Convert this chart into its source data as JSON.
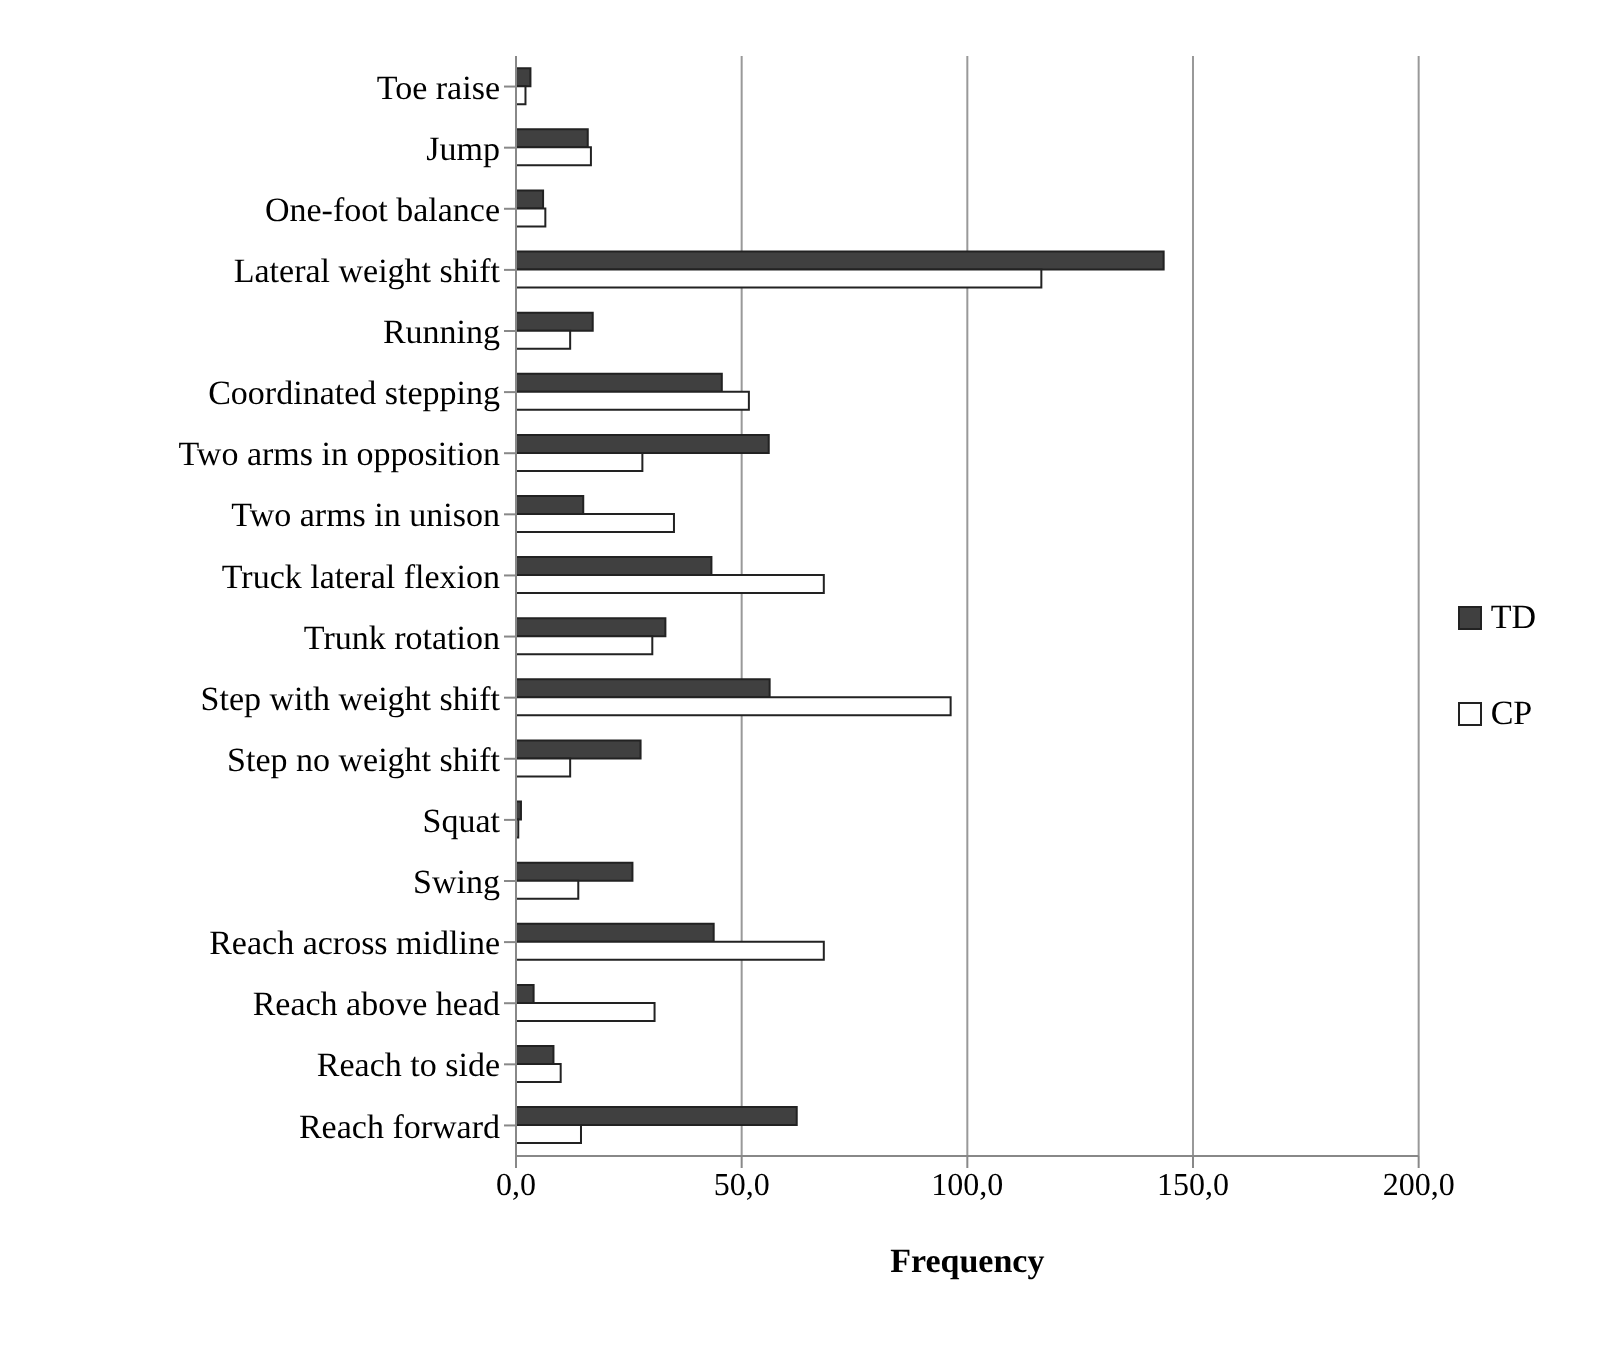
{
  "chart_data": {
    "type": "bar",
    "orientation": "horizontal",
    "xlabel": "Frequency",
    "categories": [
      "Toe raise",
      "Jump",
      "One-foot balance",
      "Lateral weight shift",
      "Running",
      "Coordinated stepping",
      "Two arms in opposition",
      "Two arms in unison",
      "Truck lateral flexion",
      "Trunk rotation",
      "Step with weight shift",
      "Step no weight shift",
      "Squat",
      "Swing",
      "Reach across midline",
      "Reach above head",
      "Reach  to side",
      "Reach forward"
    ],
    "series": [
      {
        "name": "TD",
        "color": "#404040",
        "values": [
          3.2,
          15.9,
          6.0,
          143.5,
          17.0,
          45.6,
          56.0,
          14.9,
          43.3,
          33.1,
          56.2,
          27.6,
          1.1,
          25.8,
          43.8,
          3.9,
          8.3,
          62.2
        ]
      },
      {
        "name": "CP",
        "color": "#ffffff",
        "values": [
          2.1,
          16.6,
          6.5,
          116.4,
          12.0,
          51.6,
          28.0,
          35.0,
          68.2,
          30.2,
          96.3,
          12.0,
          0.5,
          13.8,
          68.2,
          30.7,
          9.9,
          14.4
        ]
      }
    ],
    "xlim": [
      0,
      200
    ],
    "xticks": [
      {
        "value": 0,
        "label": "0,0"
      },
      {
        "value": 50,
        "label": "50,0"
      },
      {
        "value": 100,
        "label": "100,0"
      },
      {
        "value": 150,
        "label": "150,0"
      },
      {
        "value": 200,
        "label": "200,0"
      }
    ],
    "grid": "x",
    "legend": "right"
  }
}
